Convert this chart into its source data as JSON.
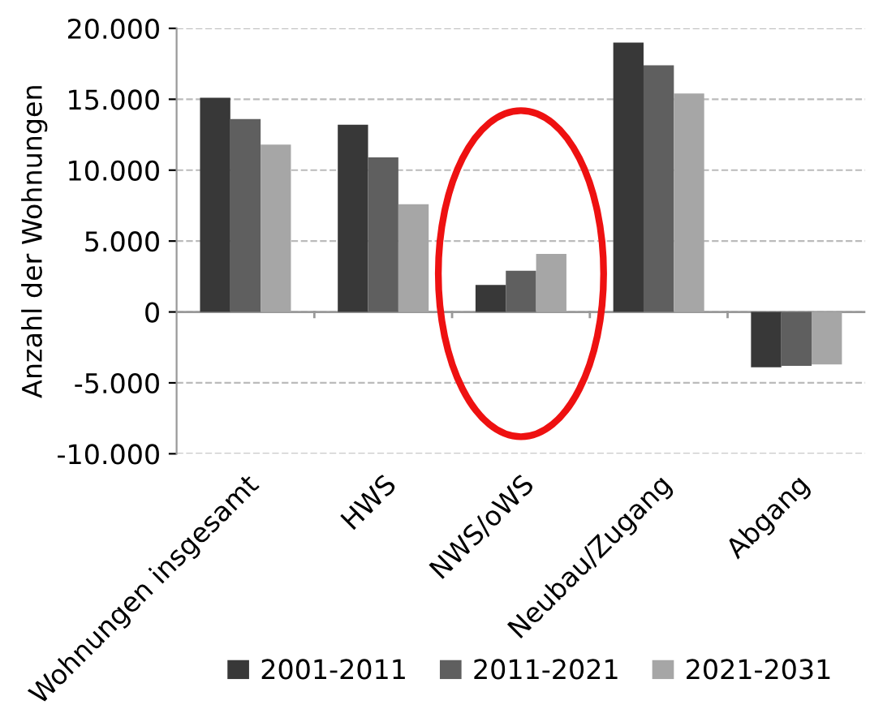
{
  "chart_data": {
    "type": "bar",
    "ylabel": "Anzahl der Wohnungen",
    "categories": [
      "Wohnungen insgesamt",
      "HWS",
      "NWS/oWS",
      "Neubau/Zugang",
      "Abgang"
    ],
    "series": [
      {
        "name": "2001-2011",
        "color": "#383838",
        "values": [
          15100,
          13200,
          1900,
          19000,
          -3900
        ]
      },
      {
        "name": "2011-2021",
        "color": "#5f5f5f",
        "values": [
          13600,
          10900,
          2900,
          17400,
          -3800
        ]
      },
      {
        "name": "2021-2031",
        "color": "#a6a6a6",
        "values": [
          11800,
          7600,
          4100,
          15400,
          -3700
        ]
      }
    ],
    "ylim": [
      -10000,
      20000
    ],
    "yticks": [
      {
        "value": -10000,
        "label": "-10.000"
      },
      {
        "value": -5000,
        "label": "-5.000"
      },
      {
        "value": 0,
        "label": "0"
      },
      {
        "value": 5000,
        "label": "5.000"
      },
      {
        "value": 10000,
        "label": "10.000"
      },
      {
        "value": 15000,
        "label": "15.000"
      },
      {
        "value": 20000,
        "label": "20.000"
      }
    ],
    "grid": "y",
    "legend": "bottom"
  }
}
